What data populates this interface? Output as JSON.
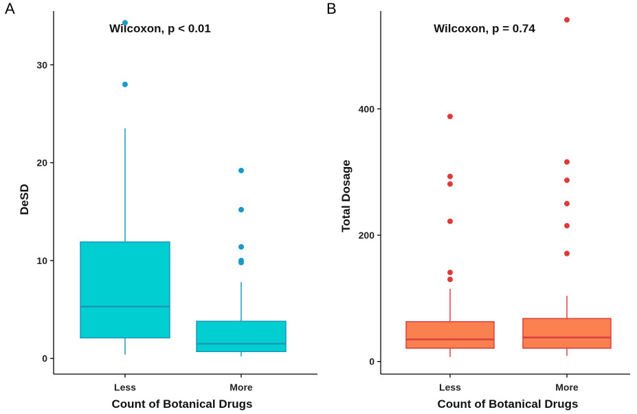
{
  "colors": {
    "panel_a": "#00CED1",
    "panel_a_line": "#1A98B8",
    "panel_b": "#FA8050",
    "panel_b_line": "#D84040",
    "outlier_a": "#1A98C8",
    "outlier_b": "#DE3A3A"
  },
  "chart_data": [
    {
      "panel": "A",
      "type": "box",
      "annotation": "Wilcoxon, p < 0.01",
      "xlabel": "Count of Botanical Drugs",
      "ylabel": "DeSD",
      "categories": [
        "Less",
        "More"
      ],
      "ylim": [
        -1.6,
        35.5
      ],
      "yticks": [
        0,
        10,
        20,
        30
      ],
      "ytick_labels": [
        "0",
        "10",
        "20",
        "30"
      ],
      "boxes": [
        {
          "category": "Less",
          "min": 0.4,
          "q1": 2.1,
          "median": 5.3,
          "q3": 11.9,
          "max": 23.5,
          "outliers": [
            28.0,
            34.3
          ]
        },
        {
          "category": "More",
          "min": 0.2,
          "q1": 0.7,
          "median": 1.5,
          "q3": 3.8,
          "max": 7.8,
          "outliers": [
            9.8,
            10.0,
            11.4,
            15.2,
            19.2
          ]
        }
      ]
    },
    {
      "panel": "B",
      "type": "box",
      "annotation": "Wilcoxon, p = 0.74",
      "xlabel": "Count of Botanical Drugs",
      "ylabel": "Total Dosage",
      "categories": [
        "Less",
        "More"
      ],
      "ylim": [
        -20,
        555
      ],
      "yticks": [
        0,
        200,
        400
      ],
      "ytick_labels": [
        "0",
        "200",
        "400"
      ],
      "boxes": [
        {
          "category": "Less",
          "min": 7,
          "q1": 21,
          "median": 35,
          "q3": 63,
          "max": 115,
          "outliers": [
            130,
            141,
            222,
            281,
            293,
            388
          ]
        },
        {
          "category": "More",
          "min": 9,
          "q1": 21,
          "median": 38,
          "q3": 68,
          "max": 104,
          "outliers": [
            171,
            215,
            250,
            287,
            316,
            541
          ]
        }
      ]
    }
  ]
}
